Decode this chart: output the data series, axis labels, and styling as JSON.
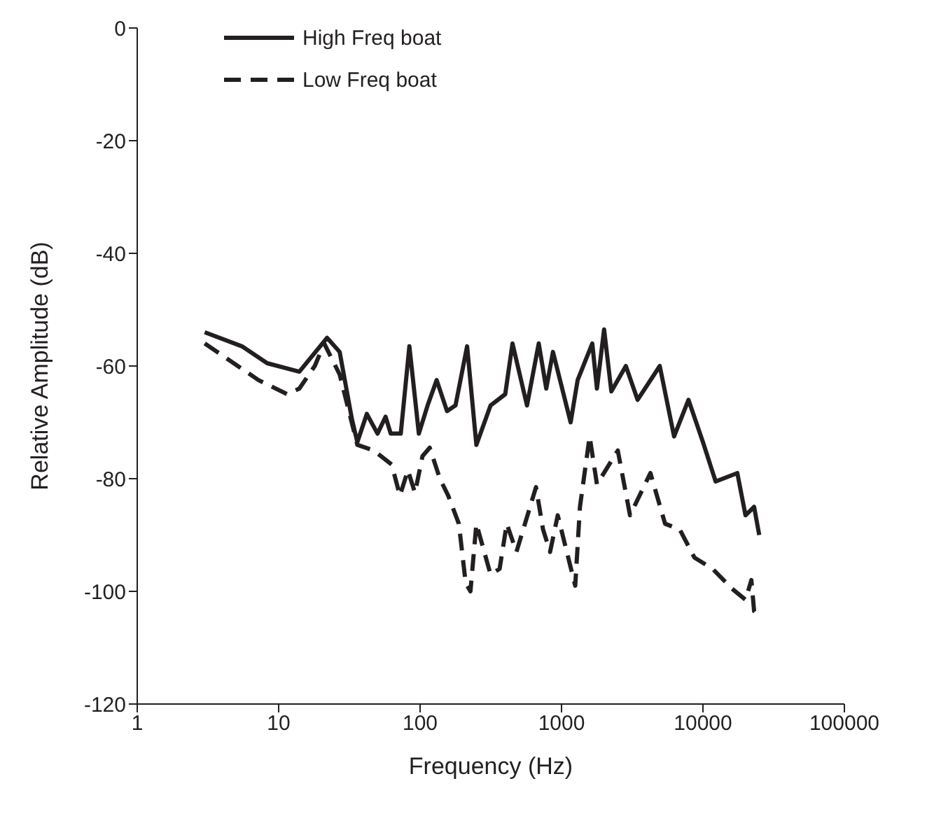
{
  "chart_data": {
    "type": "line",
    "xlabel": "Frequency (Hz)",
    "ylabel": "Relative Amplitude (dB)",
    "log": "x",
    "xlim": [
      1,
      100000
    ],
    "xticks": [
      1,
      10,
      100,
      1000,
      10000,
      100000
    ],
    "ylim": [
      -120,
      0
    ],
    "yticks": [
      -120,
      -100,
      -80,
      -60,
      -40,
      -20,
      0
    ],
    "legend": "top left",
    "series": [
      {
        "name": "High Freq boat",
        "color": "#231f20",
        "line_style": "solid",
        "x": [
          3,
          5.5,
          8.3,
          14,
          22,
          27,
          33,
          36,
          42,
          50,
          57,
          62,
          73,
          84,
          98,
          113,
          131,
          155,
          178,
          215,
          250,
          315,
          400,
          450,
          570,
          690,
          780,
          870,
          1160,
          1300,
          1650,
          1780,
          2000,
          2250,
          2850,
          3450,
          4950,
          6250,
          7900,
          10000,
          12300,
          17500,
          20000,
          23000,
          25000
        ],
        "values": [
          -54,
          -56.5,
          -59.5,
          -61,
          -55,
          -57.5,
          -69.5,
          -73.5,
          -68.5,
          -72,
          -69,
          -72,
          -72,
          -56.5,
          -72,
          -67,
          -62.5,
          -68,
          -67,
          -56.5,
          -74,
          -67,
          -65,
          -56,
          -67,
          -56,
          -64,
          -57.5,
          -70,
          -62.5,
          -56,
          -64,
          -53.5,
          -64.5,
          -60,
          -66,
          -60,
          -72.5,
          -66,
          -73.5,
          -80.5,
          -79,
          -86.5,
          -85,
          -90
        ]
      },
      {
        "name": "Low Freq boat",
        "color": "#231f20",
        "line_style": "dashed",
        "x": [
          3,
          4.5,
          7.2,
          11.5,
          14,
          18,
          21,
          27,
          36,
          47,
          63,
          72,
          82,
          92,
          104,
          117,
          138,
          158,
          188,
          210,
          227,
          250,
          315,
          365,
          410,
          480,
          660,
          740,
          830,
          940,
          1250,
          1350,
          1580,
          1780,
          2500,
          3050,
          4250,
          5400,
          6850,
          8700,
          11700,
          16000,
          20000,
          22000,
          23000,
          25000
        ],
        "values": [
          -56,
          -59,
          -62.5,
          -65,
          -64,
          -60,
          -56,
          -61.5,
          -74,
          -75,
          -77.5,
          -83,
          -78.5,
          -82.5,
          -76,
          -74.5,
          -80,
          -83,
          -88,
          -98.5,
          -100,
          -88,
          -97,
          -96,
          -88,
          -93,
          -81.5,
          -89,
          -93,
          -86.5,
          -99,
          -85,
          -72.5,
          -81,
          -75,
          -86.5,
          -79,
          -88,
          -89,
          -94,
          -96,
          -99.5,
          -101.5,
          -98,
          -103.5,
          -104.5
        ]
      }
    ]
  }
}
